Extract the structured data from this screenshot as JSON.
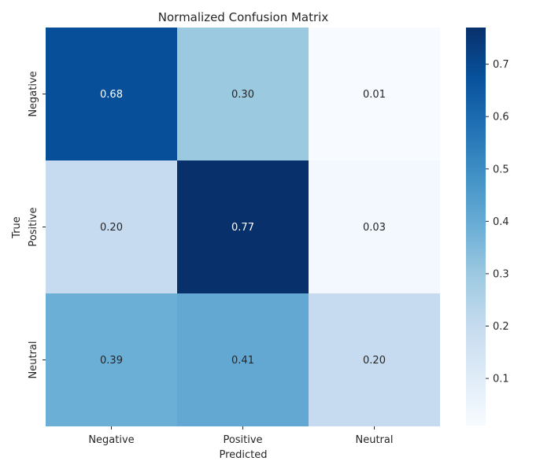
{
  "chart_data": {
    "type": "heatmap",
    "title": "Normalized Confusion Matrix",
    "xlabel": "Predicted",
    "ylabel": "True",
    "x_categories": [
      "Negative",
      "Positive",
      "Neutral"
    ],
    "y_categories": [
      "Negative",
      "Positive",
      "Neutral"
    ],
    "values": [
      [
        0.68,
        0.3,
        0.01
      ],
      [
        0.2,
        0.77,
        0.03
      ],
      [
        0.39,
        0.41,
        0.2
      ]
    ],
    "value_labels": [
      [
        "0.68",
        "0.30",
        "0.01"
      ],
      [
        "0.20",
        "0.77",
        "0.03"
      ],
      [
        "0.39",
        "0.41",
        "0.20"
      ]
    ],
    "colorbar": {
      "min": 0.01,
      "max": 0.77,
      "ticks": [
        0.1,
        0.2,
        0.3,
        0.4,
        0.5,
        0.6,
        0.7
      ],
      "tick_labels": [
        "0.1",
        "0.2",
        "0.3",
        "0.4",
        "0.5",
        "0.6",
        "0.7"
      ],
      "colormap": "Blues",
      "colors": [
        "#f7fbff",
        "#deebf7",
        "#c6dbef",
        "#9ecae1",
        "#6baed6",
        "#4292c6",
        "#2171b5",
        "#08519c",
        "#08306b"
      ]
    },
    "grid": false
  }
}
